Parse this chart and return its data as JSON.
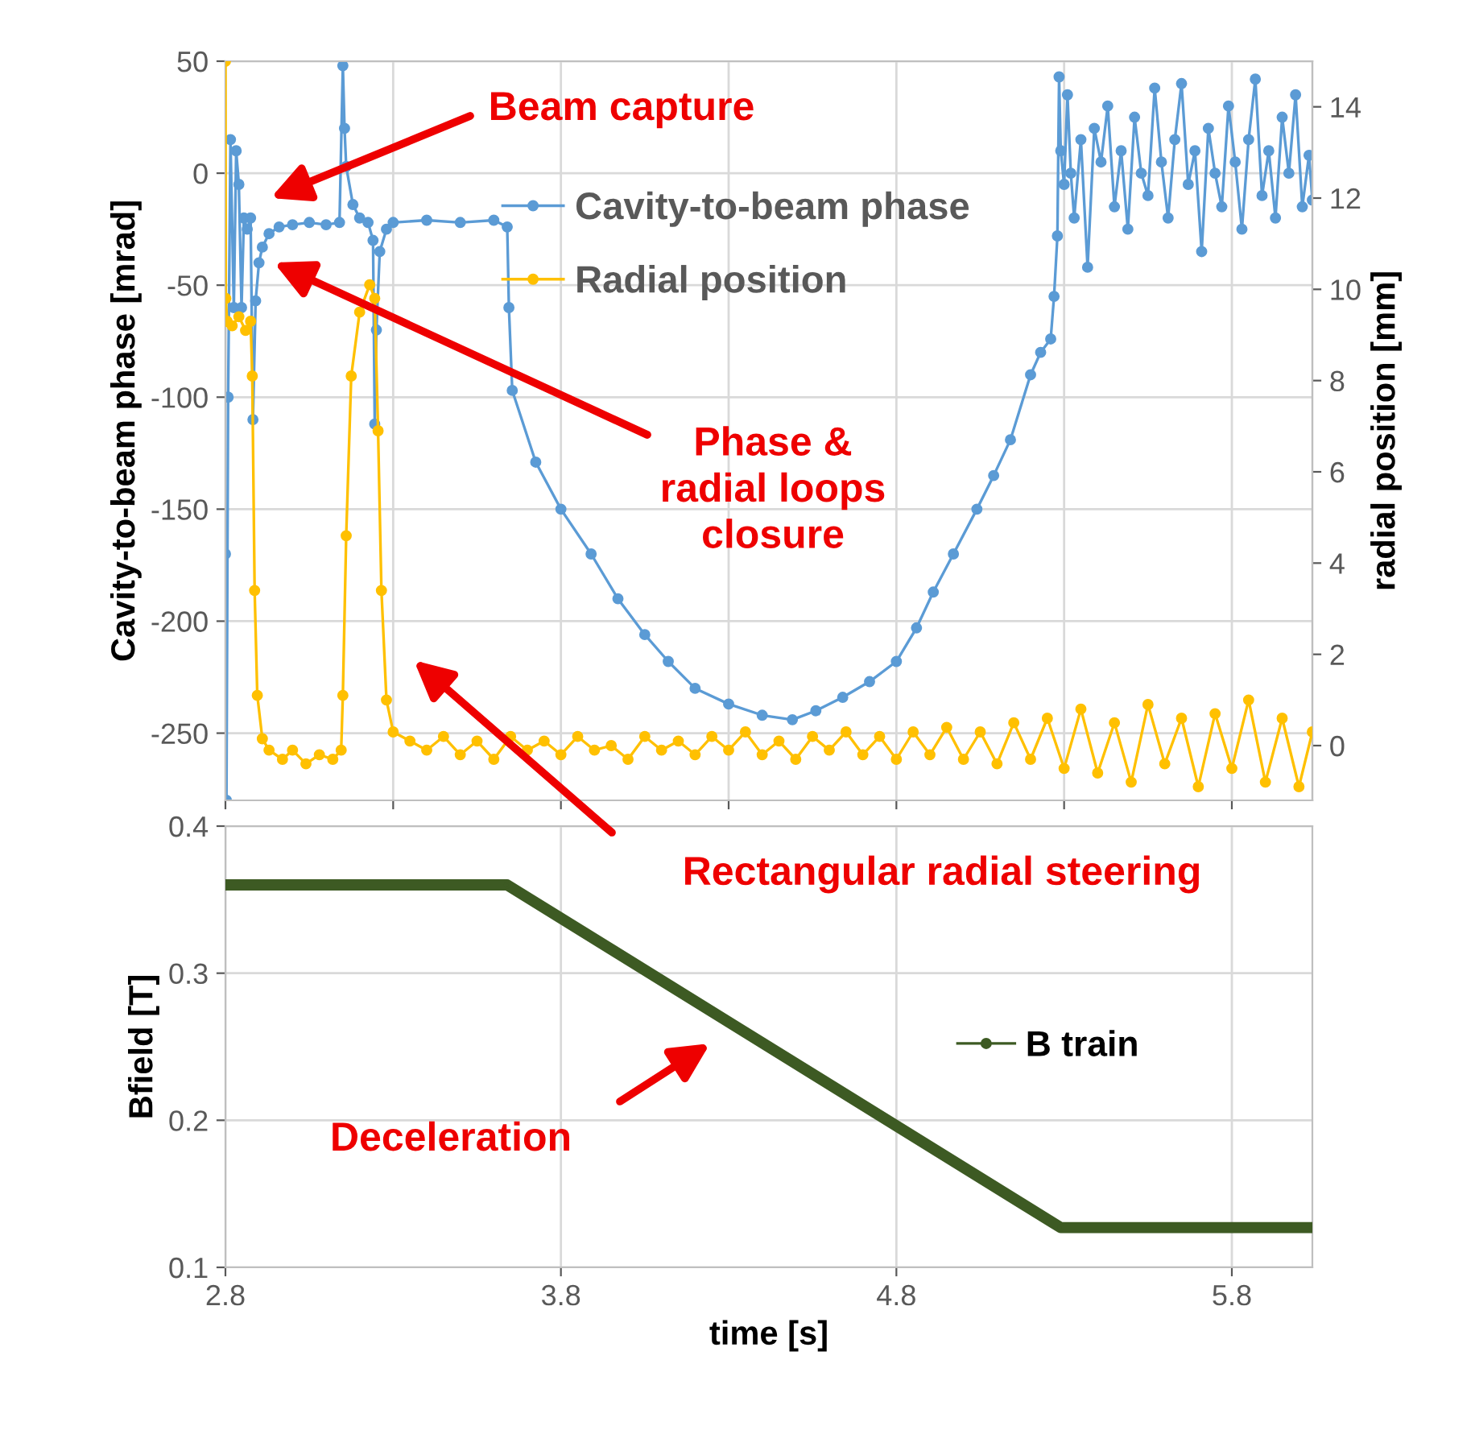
{
  "chart_data": [
    {
      "type": "line",
      "ylabel": "Cavity-to-beam phase [mrad]",
      "y2label": "radial position [mm]",
      "xlim": [
        2.8,
        6.04
      ],
      "xticks": [
        {
          "value": 2.8,
          "label": null
        },
        {
          "value": 3.3,
          "label": null
        },
        {
          "value": 3.8,
          "label": null
        },
        {
          "value": 4.3,
          "label": null
        },
        {
          "value": 4.8,
          "label": null
        },
        {
          "value": 5.3,
          "label": null
        },
        {
          "value": 5.8,
          "label": null
        }
      ],
      "ylim": [
        -280,
        50
      ],
      "yticks": [
        -250,
        -200,
        -150,
        -100,
        -50,
        0,
        50
      ],
      "y2lim": [
        -1.2,
        15
      ],
      "y2ticks": [
        0,
        2,
        4,
        6,
        8,
        10,
        12,
        14
      ],
      "tick_labels": "y",
      "grid": true,
      "legend": "top",
      "marker": "circle",
      "line_style": "solid",
      "series": [
        {
          "name": "Cavity-to-beam phase",
          "color": "#5b9bd5",
          "x": [
            2.8,
            2.803,
            2.808,
            2.815,
            2.825,
            2.832,
            2.84,
            2.848,
            2.855,
            2.865,
            2.875,
            2.882,
            2.89,
            2.9,
            2.91,
            2.93,
            2.96,
            3.0,
            3.05,
            3.1,
            3.14,
            3.15,
            3.155,
            3.16,
            3.18,
            3.2,
            3.225,
            3.24,
            3.245,
            3.25,
            3.26,
            3.28,
            3.3,
            3.4,
            3.5,
            3.6,
            3.64,
            3.645,
            3.655,
            3.725,
            3.8,
            3.89,
            3.97,
            4.05,
            4.12,
            4.2,
            4.3,
            4.4,
            4.49,
            4.56,
            4.64,
            4.72,
            4.8,
            4.86,
            4.91,
            4.97,
            5.04,
            5.09,
            5.14,
            5.2,
            5.23,
            5.26,
            5.27,
            5.28,
            5.285,
            5.29,
            5.3,
            5.31,
            5.32,
            5.33,
            5.35,
            5.37,
            5.39,
            5.41,
            5.43,
            5.45,
            5.47,
            5.49,
            5.51,
            5.53,
            5.55,
            5.57,
            5.59,
            5.61,
            5.63,
            5.65,
            5.67,
            5.69,
            5.71,
            5.73,
            5.75,
            5.77,
            5.79,
            5.81,
            5.83,
            5.85,
            5.87,
            5.89,
            5.91,
            5.93,
            5.95,
            5.97,
            5.99,
            6.01,
            6.03,
            6.04
          ],
          "values": [
            -170,
            -280,
            -100,
            15,
            -60,
            10,
            -5,
            -60,
            -20,
            -25,
            -20,
            -110,
            -57,
            -40,
            -33,
            -27,
            -24,
            -23,
            -22,
            -23,
            -22,
            48,
            20,
            3,
            -14,
            -20,
            -22,
            -30,
            -112,
            -70,
            -35,
            -25,
            -22,
            -21,
            -22,
            -21,
            -24,
            -60,
            -97,
            -129,
            -150,
            -170,
            -190,
            -206,
            -218,
            -230,
            -237,
            -242,
            -244,
            -240,
            -234,
            -227,
            -218,
            -203,
            -187,
            -170,
            -150,
            -135,
            -119,
            -90,
            -80,
            -74,
            -55,
            -28,
            43,
            10,
            -5,
            35,
            0,
            -20,
            15,
            -42,
            20,
            5,
            30,
            -15,
            10,
            -25,
            25,
            0,
            -10,
            38,
            5,
            -20,
            15,
            40,
            -5,
            10,
            -35,
            20,
            0,
            -15,
            30,
            5,
            -25,
            15,
            42,
            -10,
            10,
            -20,
            25,
            0,
            35,
            -15,
            8,
            -12
          ]
        },
        {
          "name": "Radial position",
          "color": "#ffc000",
          "axis": "y2",
          "x": [
            2.8,
            2.801,
            2.805,
            2.82,
            2.84,
            2.86,
            2.875,
            2.88,
            2.887,
            2.895,
            2.91,
            2.93,
            2.97,
            3.0,
            3.04,
            3.08,
            3.12,
            3.145,
            3.15,
            3.16,
            3.175,
            3.2,
            3.23,
            3.245,
            3.255,
            3.265,
            3.28,
            3.3,
            3.35,
            3.4,
            3.45,
            3.5,
            3.55,
            3.6,
            3.65,
            3.7,
            3.75,
            3.8,
            3.85,
            3.9,
            3.95,
            4.0,
            4.05,
            4.1,
            4.15,
            4.2,
            4.25,
            4.3,
            4.35,
            4.4,
            4.45,
            4.5,
            4.55,
            4.6,
            4.65,
            4.7,
            4.75,
            4.8,
            4.85,
            4.9,
            4.95,
            5.0,
            5.05,
            5.1,
            5.15,
            5.2,
            5.25,
            5.3,
            5.35,
            5.4,
            5.45,
            5.5,
            5.55,
            5.6,
            5.65,
            5.7,
            5.75,
            5.8,
            5.85,
            5.9,
            5.95,
            6.0,
            6.04
          ],
          "values": [
            15,
            9.8,
            9.3,
            9.2,
            9.4,
            9.1,
            9.3,
            8.1,
            3.4,
            1.1,
            0.15,
            -0.1,
            -0.3,
            -0.1,
            -0.4,
            -0.2,
            -0.3,
            -0.1,
            1.1,
            4.6,
            8.1,
            9.5,
            10.1,
            9.8,
            6.9,
            3.4,
            1.0,
            0.3,
            0.1,
            -0.1,
            0.2,
            -0.2,
            0.1,
            -0.3,
            0.2,
            -0.1,
            0.1,
            -0.2,
            0.2,
            -0.1,
            0.0,
            -0.3,
            0.2,
            -0.1,
            0.1,
            -0.2,
            0.2,
            -0.1,
            0.3,
            -0.2,
            0.1,
            -0.3,
            0.2,
            -0.1,
            0.3,
            -0.2,
            0.2,
            -0.3,
            0.3,
            -0.2,
            0.4,
            -0.3,
            0.3,
            -0.4,
            0.5,
            -0.3,
            0.6,
            -0.5,
            0.8,
            -0.6,
            0.5,
            -0.8,
            0.9,
            -0.4,
            0.6,
            -0.9,
            0.7,
            -0.5,
            1.0,
            -0.8,
            0.6,
            -0.9,
            0.3
          ]
        }
      ],
      "annotations": [
        "Beam capture",
        "Phase &\nradial loops\nclosure",
        "Rectangular radial steering"
      ]
    },
    {
      "type": "line",
      "xlabel": "time [s]",
      "ylabel": "Bfield [T]",
      "xlim": [
        2.8,
        6.04
      ],
      "xticks": [
        2.8,
        3.8,
        4.8,
        5.8
      ],
      "ylim": [
        0.1,
        0.4
      ],
      "yticks": [
        0.1,
        0.2,
        0.3,
        0.4
      ],
      "grid": true,
      "legend": "right",
      "marker": "circle",
      "line_style": "solid",
      "series": [
        {
          "name": "B train",
          "color": "#3d5a23",
          "x": [
            2.8,
            3.64,
            5.29,
            6.04
          ],
          "values": [
            0.36,
            0.36,
            0.127,
            0.127
          ]
        }
      ],
      "annotations": [
        "Deceleration"
      ]
    }
  ]
}
